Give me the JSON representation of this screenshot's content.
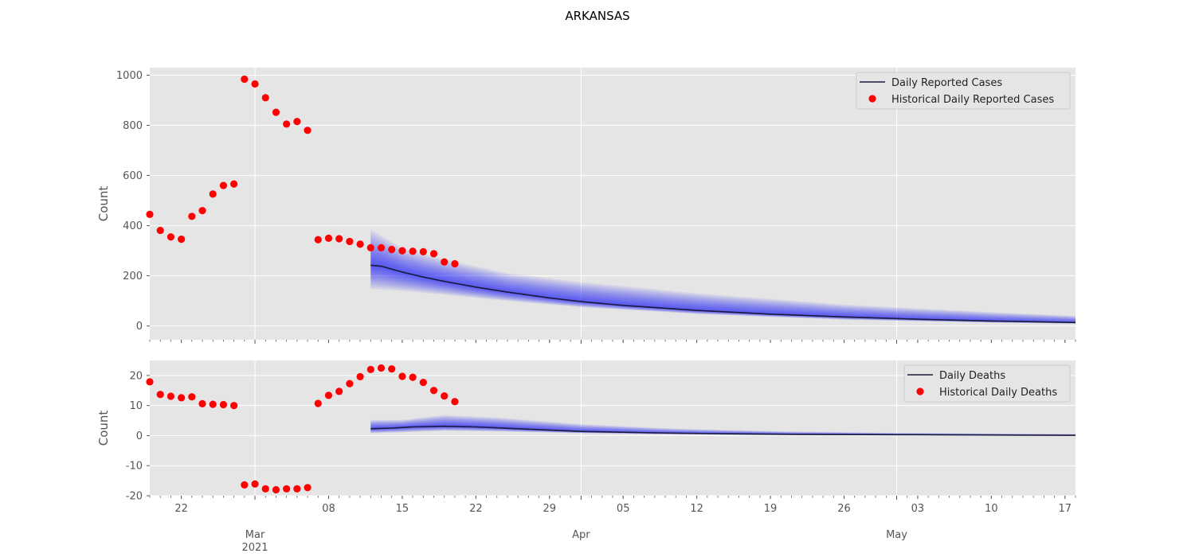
{
  "figure": {
    "title": "ARKANSAS"
  },
  "style": {
    "plot_bg": "#e5e5e5",
    "grid": "#ffffff",
    "text": "#555555",
    "line": "#1a1a3a",
    "band": "#0000ff",
    "dots": "#ff0000"
  },
  "x_axis": {
    "start": "2021-02-19",
    "end": "2021-05-18",
    "minor_every_days": 1,
    "major_ticks": [
      {
        "date": "2021-03-01",
        "label": "Mar",
        "sublabel": "2021"
      },
      {
        "date": "2021-04-01",
        "label": "Apr",
        "sublabel": ""
      },
      {
        "date": "2021-05-01",
        "label": "May",
        "sublabel": ""
      }
    ],
    "minor_labels": [
      {
        "date": "2021-02-22",
        "label": "22"
      },
      {
        "date": "2021-03-08",
        "label": "08"
      },
      {
        "date": "2021-03-15",
        "label": "15"
      },
      {
        "date": "2021-03-22",
        "label": "22"
      },
      {
        "date": "2021-03-29",
        "label": "29"
      },
      {
        "date": "2021-04-05",
        "label": "05"
      },
      {
        "date": "2021-04-12",
        "label": "12"
      },
      {
        "date": "2021-04-19",
        "label": "19"
      },
      {
        "date": "2021-04-26",
        "label": "26"
      },
      {
        "date": "2021-05-03",
        "label": "03"
      },
      {
        "date": "2021-05-10",
        "label": "10"
      },
      {
        "date": "2021-05-17",
        "label": "17"
      }
    ]
  },
  "chart_data": [
    {
      "type": "line",
      "ylabel": "Count",
      "ylim": [
        -55,
        1030
      ],
      "yticks": [
        0,
        200,
        400,
        600,
        800,
        1000
      ],
      "grid": true,
      "legend_position": "top-right",
      "legend": {
        "line_label": "Daily Reported Cases",
        "dots_label": "Historical Daily Reported Cases"
      },
      "series_line": {
        "name": "Daily Reported Cases",
        "x": [
          "2021-03-12",
          "2021-03-13",
          "2021-03-15",
          "2021-03-17",
          "2021-03-19",
          "2021-03-22",
          "2021-03-25",
          "2021-03-29",
          "2021-04-01",
          "2021-04-05",
          "2021-04-12",
          "2021-04-19",
          "2021-04-26",
          "2021-05-03",
          "2021-05-10",
          "2021-05-18"
        ],
        "y": [
          242,
          238,
          215,
          195,
          178,
          155,
          135,
          112,
          97,
          82,
          62,
          47,
          36,
          27,
          20,
          14
        ]
      },
      "band": {
        "x": [
          "2021-03-12",
          "2021-03-15",
          "2021-03-19",
          "2021-03-25",
          "2021-04-01",
          "2021-04-12",
          "2021-04-26",
          "2021-05-10",
          "2021-05-18"
        ],
        "lower": [
          148,
          140,
          125,
          100,
          75,
          48,
          25,
          13,
          9
        ],
        "upper": [
          385,
          310,
          265,
          210,
          175,
          130,
          85,
          55,
          40
        ]
      },
      "series_dots": {
        "name": "Historical Daily Reported Cases",
        "x": [
          "2021-02-19",
          "2021-02-20",
          "2021-02-21",
          "2021-02-22",
          "2021-02-23",
          "2021-02-24",
          "2021-02-25",
          "2021-02-26",
          "2021-02-27",
          "2021-02-28",
          "2021-03-01",
          "2021-03-02",
          "2021-03-03",
          "2021-03-04",
          "2021-03-05",
          "2021-03-06",
          "2021-03-07",
          "2021-03-08",
          "2021-03-09",
          "2021-03-10",
          "2021-03-11",
          "2021-03-12",
          "2021-03-13",
          "2021-03-14",
          "2021-03-15",
          "2021-03-16",
          "2021-03-17",
          "2021-03-18",
          "2021-03-19",
          "2021-03-20"
        ],
        "y": [
          445,
          381,
          355,
          346,
          437,
          460,
          526,
          560,
          566,
          984,
          965,
          910,
          852,
          805,
          815,
          780,
          344,
          350,
          348,
          337,
          326,
          312,
          312,
          305,
          300,
          298,
          296,
          288,
          255,
          248
        ]
      }
    },
    {
      "type": "line",
      "ylabel": "Count",
      "ylim": [
        -20,
        25
      ],
      "yticks": [
        -20,
        -10,
        0,
        10,
        20
      ],
      "grid": true,
      "legend_position": "top-right",
      "legend": {
        "line_label": "Daily Deaths",
        "dots_label": "Historical Daily Deaths"
      },
      "series_line": {
        "name": "Daily Deaths",
        "x": [
          "2021-03-12",
          "2021-03-14",
          "2021-03-16",
          "2021-03-19",
          "2021-03-22",
          "2021-03-26",
          "2021-04-01",
          "2021-04-08",
          "2021-04-15",
          "2021-04-22",
          "2021-05-01",
          "2021-05-10",
          "2021-05-18"
        ],
        "y": [
          2.3,
          2.5,
          2.9,
          3.1,
          2.9,
          2.3,
          1.4,
          0.9,
          0.6,
          0.4,
          0.3,
          0.2,
          0.1
        ]
      },
      "band": {
        "x": [
          "2021-03-12",
          "2021-03-15",
          "2021-03-19",
          "2021-03-24",
          "2021-04-01",
          "2021-04-10",
          "2021-04-20",
          "2021-05-01",
          "2021-05-18"
        ],
        "lower": [
          0.8,
          1.1,
          1.6,
          1.4,
          0.8,
          0.4,
          0.2,
          0.1,
          0.05
        ],
        "upper": [
          5.2,
          5.2,
          6.8,
          6.0,
          3.8,
          2.3,
          1.4,
          0.9,
          0.5
        ]
      },
      "series_dots": {
        "name": "Historical Daily Deaths",
        "x": [
          "2021-02-19",
          "2021-02-20",
          "2021-02-21",
          "2021-02-22",
          "2021-02-23",
          "2021-02-24",
          "2021-02-25",
          "2021-02-26",
          "2021-02-27",
          "2021-02-28",
          "2021-03-01",
          "2021-03-02",
          "2021-03-03",
          "2021-03-04",
          "2021-03-05",
          "2021-03-06",
          "2021-03-07",
          "2021-03-08",
          "2021-03-09",
          "2021-03-10",
          "2021-03-11",
          "2021-03-12",
          "2021-03-13",
          "2021-03-14",
          "2021-03-15",
          "2021-03-16",
          "2021-03-17",
          "2021-03-18",
          "2021-03-19",
          "2021-03-20"
        ],
        "y": [
          17.9,
          13.7,
          13.1,
          12.6,
          12.9,
          10.6,
          10.4,
          10.3,
          10.0,
          -16.4,
          -16.1,
          -17.7,
          -18.0,
          -17.7,
          -17.7,
          -17.3,
          10.7,
          13.4,
          14.7,
          17.3,
          19.6,
          22.0,
          22.5,
          22.2,
          19.7,
          19.4,
          17.7,
          15.0,
          13.2,
          11.3
        ]
      }
    }
  ]
}
